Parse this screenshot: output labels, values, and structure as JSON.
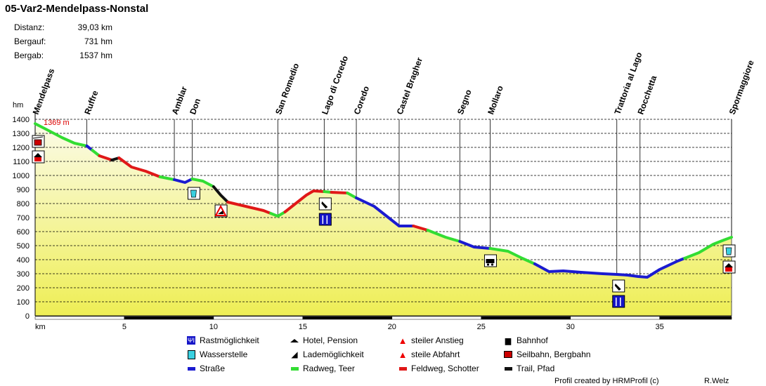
{
  "title": "05-Var2-Mendelpass-Nonstal",
  "stats": [
    {
      "label": "Distanz:",
      "value": "39,03 km"
    },
    {
      "label": "Bergauf:",
      "value": "731 hm"
    },
    {
      "label": "Bergab:",
      "value": "1537 hm"
    }
  ],
  "chart_data": {
    "type": "area",
    "ylabel": "hm",
    "xlabel": "km",
    "xlim": [
      0,
      39.03
    ],
    "ylim": [
      0,
      1400
    ],
    "x_ticks": [
      5,
      10,
      15,
      20,
      25,
      30,
      35
    ],
    "y_ticks": [
      0,
      100,
      200,
      300,
      400,
      500,
      600,
      700,
      800,
      900,
      1000,
      1100,
      1200,
      1300,
      1400
    ],
    "max_label": "1369 m",
    "places": [
      {
        "name": "Mendelpass",
        "km": 0.0
      },
      {
        "name": "Ruffre",
        "km": 2.9
      },
      {
        "name": "Amblar",
        "km": 7.8
      },
      {
        "name": "Don",
        "km": 8.8
      },
      {
        "name": "San Romedio",
        "km": 13.6
      },
      {
        "name": "Lago di Coredo",
        "km": 16.2
      },
      {
        "name": "Coredo",
        "km": 18.0
      },
      {
        "name": "Castel Bragher",
        "km": 20.4
      },
      {
        "name": "Segno",
        "km": 23.8
      },
      {
        "name": "Mollaro",
        "km": 25.5
      },
      {
        "name": "Trattoria al Lago",
        "km": 32.6
      },
      {
        "name": "Rocchetta",
        "km": 33.9
      },
      {
        "name": "Spormaggiore",
        "km": 39.03
      }
    ],
    "segments": [
      {
        "surface": "green",
        "points": [
          [
            0,
            1369
          ],
          [
            0.6,
            1330
          ],
          [
            1.5,
            1270
          ],
          [
            2.2,
            1230
          ],
          [
            2.9,
            1210
          ]
        ]
      },
      {
        "surface": "blue",
        "points": [
          [
            2.9,
            1210
          ],
          [
            3.2,
            1180
          ]
        ]
      },
      {
        "surface": "green",
        "points": [
          [
            3.2,
            1180
          ],
          [
            3.6,
            1140
          ]
        ]
      },
      {
        "surface": "red",
        "points": [
          [
            3.6,
            1140
          ],
          [
            4.3,
            1110
          ]
        ]
      },
      {
        "surface": "black",
        "points": [
          [
            4.3,
            1110
          ],
          [
            4.7,
            1125
          ]
        ]
      },
      {
        "surface": "red",
        "points": [
          [
            4.7,
            1125
          ],
          [
            5.4,
            1060
          ],
          [
            6.2,
            1030
          ],
          [
            7.0,
            990
          ]
        ]
      },
      {
        "surface": "green",
        "points": [
          [
            7.0,
            990
          ],
          [
            7.8,
            970
          ]
        ]
      },
      {
        "surface": "blue",
        "points": [
          [
            7.8,
            970
          ],
          [
            8.4,
            950
          ],
          [
            8.8,
            975
          ]
        ]
      },
      {
        "surface": "green",
        "points": [
          [
            8.8,
            975
          ],
          [
            9.4,
            960
          ],
          [
            10.0,
            920
          ]
        ]
      },
      {
        "surface": "black",
        "points": [
          [
            10.0,
            920
          ],
          [
            10.4,
            860
          ],
          [
            10.8,
            810
          ]
        ]
      },
      {
        "surface": "red",
        "points": [
          [
            10.8,
            810
          ],
          [
            11.8,
            780
          ],
          [
            12.8,
            750
          ],
          [
            13.2,
            730
          ]
        ]
      },
      {
        "surface": "green",
        "points": [
          [
            13.2,
            730
          ],
          [
            13.6,
            710
          ],
          [
            14.0,
            740
          ]
        ]
      },
      {
        "surface": "red",
        "points": [
          [
            14.0,
            740
          ],
          [
            14.6,
            800
          ],
          [
            15.2,
            860
          ],
          [
            15.6,
            890
          ],
          [
            16.2,
            885
          ]
        ]
      },
      {
        "surface": "green",
        "points": [
          [
            16.2,
            885
          ],
          [
            16.6,
            880
          ]
        ]
      },
      {
        "surface": "red",
        "points": [
          [
            16.6,
            880
          ],
          [
            17.5,
            875
          ]
        ]
      },
      {
        "surface": "green",
        "points": [
          [
            17.5,
            875
          ],
          [
            18.0,
            840
          ]
        ]
      },
      {
        "surface": "blue",
        "points": [
          [
            18.0,
            840
          ],
          [
            19.0,
            780
          ],
          [
            19.8,
            700
          ],
          [
            20.4,
            640
          ],
          [
            21.2,
            640
          ]
        ]
      },
      {
        "surface": "red",
        "points": [
          [
            21.2,
            640
          ],
          [
            22.0,
            610
          ]
        ]
      },
      {
        "surface": "green",
        "points": [
          [
            22.0,
            610
          ],
          [
            23.0,
            560
          ],
          [
            23.8,
            530
          ]
        ]
      },
      {
        "surface": "blue",
        "points": [
          [
            23.8,
            530
          ],
          [
            24.6,
            490
          ],
          [
            25.5,
            480
          ]
        ]
      },
      {
        "surface": "green",
        "points": [
          [
            25.5,
            480
          ],
          [
            26.5,
            460
          ],
          [
            27.3,
            410
          ],
          [
            28.0,
            370
          ]
        ]
      },
      {
        "surface": "blue",
        "points": [
          [
            28.0,
            370
          ],
          [
            28.8,
            315
          ],
          [
            29.6,
            320
          ],
          [
            30.6,
            310
          ],
          [
            31.8,
            300
          ],
          [
            32.6,
            295
          ],
          [
            33.2,
            290
          ],
          [
            33.8,
            280
          ],
          [
            34.3,
            275
          ],
          [
            35.0,
            330
          ],
          [
            36.0,
            390
          ],
          [
            36.4,
            410
          ]
        ]
      },
      {
        "surface": "green",
        "points": [
          [
            36.4,
            410
          ],
          [
            37.2,
            450
          ],
          [
            38.0,
            510
          ],
          [
            38.6,
            540
          ],
          [
            39.03,
            560
          ]
        ]
      }
    ]
  },
  "legend": [
    {
      "icon": "fork-knife-icon",
      "label": "Rastmöglichkeit"
    },
    {
      "icon": "hotel-icon",
      "label": "Hotel, Pension"
    },
    {
      "icon": "steep-climb-icon",
      "label": "steiler Anstieg"
    },
    {
      "icon": "train-icon",
      "label": "Bahnhof"
    },
    {
      "icon": "water-icon",
      "label": "Wasserstelle"
    },
    {
      "icon": "charging-icon",
      "label": "Lademöglichkeit"
    },
    {
      "icon": "steep-descent-icon",
      "label": "steile Abfahrt"
    },
    {
      "icon": "cable-car-icon",
      "label": "Seilbahn, Bergbahn"
    },
    {
      "icon": "road-swatch",
      "label": "Straße"
    },
    {
      "icon": "bikepath-swatch",
      "label": "Radweg, Teer"
    },
    {
      "icon": "gravel-swatch",
      "label": "Feldweg, Schotter"
    },
    {
      "icon": "trail-swatch",
      "label": "Trail, Pfad"
    }
  ],
  "colors": {
    "green": "#33dd33",
    "blue": "#1b1bd0",
    "red": "#e01818",
    "black": "#111111",
    "fill_top": "#fbfbe8",
    "fill_bottom": "#eeee55"
  },
  "footer": {
    "credit": "Profil created by HRMProfil (c)",
    "author": "R.Welz"
  }
}
